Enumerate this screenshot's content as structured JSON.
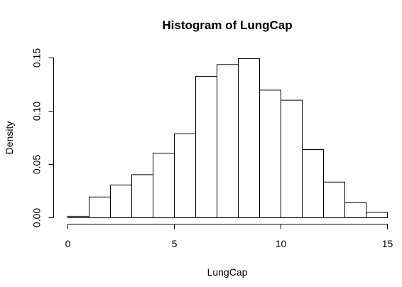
{
  "chart_data": {
    "type": "bar",
    "title": "Histogram of LungCap",
    "xlabel": "LungCap",
    "ylabel": "Density",
    "bin_edges": [
      0,
      1,
      2,
      3,
      4,
      5,
      6,
      7,
      8,
      9,
      10,
      11,
      12,
      13,
      14,
      15
    ],
    "values": [
      0.0014,
      0.0195,
      0.0307,
      0.0404,
      0.0605,
      0.0787,
      0.1326,
      0.1438,
      0.1494,
      0.1197,
      0.1103,
      0.064,
      0.0335,
      0.014,
      0.005
    ],
    "xlim": [
      0,
      15
    ],
    "ylim": [
      0,
      0.15
    ],
    "x_ticks": [
      0,
      5,
      10,
      15
    ],
    "x_tick_labels": [
      "0",
      "5",
      "10",
      "15"
    ],
    "y_ticks": [
      0,
      0.05,
      0.1,
      0.15
    ],
    "y_tick_labels": [
      "0.00",
      "0.05",
      "0.10",
      "0.15"
    ],
    "grid": false,
    "colors": {
      "bar_fill": "#ffffff",
      "bar_stroke": "#000000"
    }
  }
}
